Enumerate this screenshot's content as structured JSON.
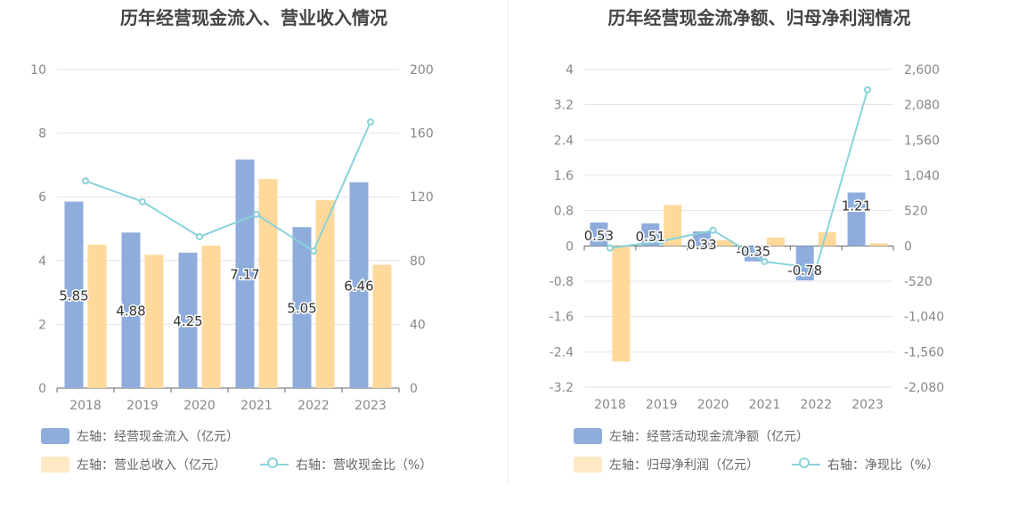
{
  "colors": {
    "inflow_bar": "#8eaddc",
    "revenue_bar": "#ffd99b",
    "ratio_line": "#89d3da",
    "grid": "#e3e3ec",
    "tick_text": "#888888",
    "label_text": "#333333"
  },
  "charts": {
    "left": {
      "title": "历年经营现金流入、营业收入情况",
      "legend": {
        "inflow": "左轴：经营现金流入（亿元）",
        "revenue": "左轴：营业总收入（亿元）",
        "ratio": "右轴：营收现金比（%）"
      }
    },
    "right": {
      "title": "历年经营现金流净额、归母净利润情况",
      "legend": {
        "netflow": "左轴：经营活动现金流净额（亿元）",
        "profit": "左轴：归母净利润（亿元）",
        "ratio": "右轴：净现比（%）"
      }
    }
  },
  "chart_data": [
    {
      "type": "bar",
      "title": "历年经营现金流入、营业收入情况",
      "categories": [
        "2018",
        "2019",
        "2020",
        "2021",
        "2022",
        "2023"
      ],
      "left_axis": {
        "ylim": [
          0,
          10
        ],
        "ticks": [
          "0",
          "2",
          "4",
          "6",
          "8",
          "10"
        ]
      },
      "right_axis": {
        "ylim": [
          0,
          200
        ],
        "ticks": [
          "0",
          "40",
          "80",
          "120",
          "160",
          "200"
        ]
      },
      "grid": true,
      "legend_position": "bottom",
      "series": [
        {
          "name": "左轴：经营现金流入（亿元）",
          "axis": "left",
          "type": "bar",
          "values": [
            5.85,
            4.88,
            4.25,
            7.17,
            5.05,
            6.46
          ],
          "labels": [
            "5.85",
            "4.88",
            "4.25",
            "7.17",
            "5.05",
            "6.46"
          ]
        },
        {
          "name": "左轴：营业总收入（亿元）",
          "axis": "left",
          "type": "bar",
          "values": [
            4.5,
            4.18,
            4.47,
            6.56,
            5.9,
            3.87
          ]
        },
        {
          "name": "右轴：营收现金比（%）",
          "axis": "right",
          "type": "line",
          "values": [
            130,
            117,
            95,
            109,
            86,
            167
          ]
        }
      ]
    },
    {
      "type": "bar",
      "title": "历年经营现金流净额、归母净利润情况",
      "categories": [
        "2018",
        "2019",
        "2020",
        "2021",
        "2022",
        "2023"
      ],
      "left_axis": {
        "ylim": [
          -3.2,
          4
        ],
        "ticks": [
          "-3.2",
          "-2.4",
          "-1.6",
          "-0.8",
          "0",
          "0.8",
          "1.6",
          "2.4",
          "3.2",
          "4"
        ]
      },
      "right_axis": {
        "ylim": [
          -2080,
          2600
        ],
        "ticks": [
          "-2,080",
          "-1,560",
          "-1,040",
          "-520",
          "0",
          "520",
          "1,040",
          "1,560",
          "2,080",
          "2,600"
        ]
      },
      "grid": true,
      "legend_position": "bottom",
      "series": [
        {
          "name": "左轴：经营活动现金流净额（亿元）",
          "axis": "left",
          "type": "bar",
          "values": [
            0.53,
            0.51,
            0.33,
            -0.35,
            -0.78,
            1.21
          ],
          "labels": [
            "0.53",
            "0.51",
            "0.33",
            "-0.35",
            "-0.78",
            "1.21"
          ]
        },
        {
          "name": "左轴：归母净利润（亿元）",
          "axis": "left",
          "type": "bar",
          "values": [
            -2.62,
            0.93,
            0.13,
            0.19,
            0.31,
            0.06
          ]
        },
        {
          "name": "右轴：净现比（%）",
          "axis": "right",
          "type": "line",
          "values": [
            -30,
            70,
            230,
            -230,
            -330,
            2300
          ]
        }
      ]
    }
  ]
}
